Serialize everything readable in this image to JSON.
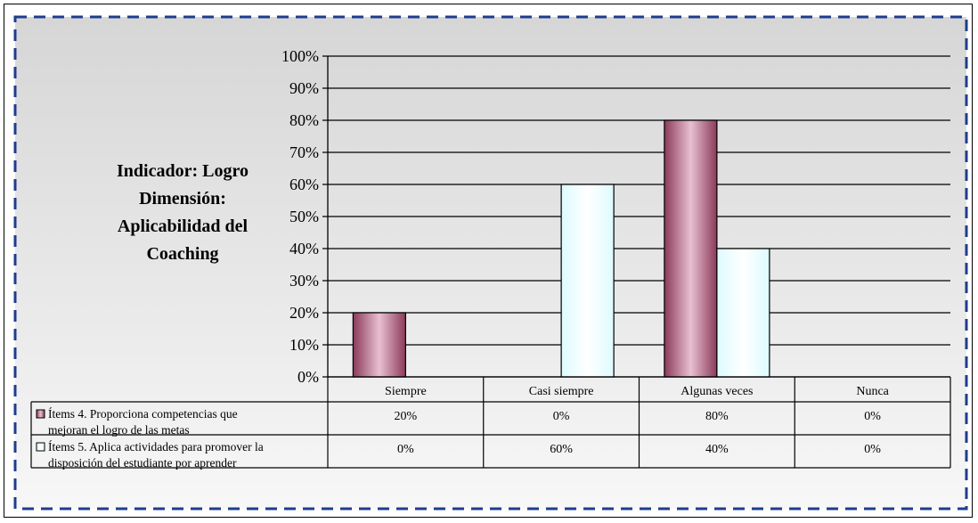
{
  "chart_data": {
    "type": "bar",
    "title_lines": [
      "Indicador: Logro",
      "Dimensión:",
      "Aplicabilidad del",
      "Coaching"
    ],
    "categories": [
      "Siempre",
      "Casi siempre",
      "Algunas veces",
      "Nunca"
    ],
    "series": [
      {
        "name": "Ítems 4. Proporciona competencias que mejoran el logro de las metas",
        "name_lines": [
          "Ítems 4. Proporciona competencias que",
          "mejoran el logro de las metas"
        ],
        "values": [
          20,
          0,
          80,
          0
        ],
        "value_labels": [
          "20%",
          "0%",
          "80%",
          "0%"
        ],
        "color": "#8b3a5a",
        "color_light": "#e8c0d0"
      },
      {
        "name": "Ítems 5. Aplica actividades para promover la disposición del estudiante por aprender",
        "name_lines": [
          "Ítems 5. Aplica actividades para promover la",
          "disposición del estudiante por aprender"
        ],
        "values": [
          0,
          60,
          40,
          0
        ],
        "value_labels": [
          "0%",
          "60%",
          "40%",
          "0%"
        ],
        "color": "#ddfbff",
        "color_light": "#ffffff"
      }
    ],
    "ylim": [
      0,
      100
    ],
    "yticks": [
      "0%",
      "10%",
      "20%",
      "30%",
      "40%",
      "50%",
      "60%",
      "70%",
      "80%",
      "90%",
      "100%"
    ],
    "grid": true,
    "legend": "data-table"
  },
  "colors": {
    "border_dash": "#1f3d8c",
    "plot_bg_top": "#d6d6d6",
    "plot_bg_bottom": "#f7f7f7"
  }
}
